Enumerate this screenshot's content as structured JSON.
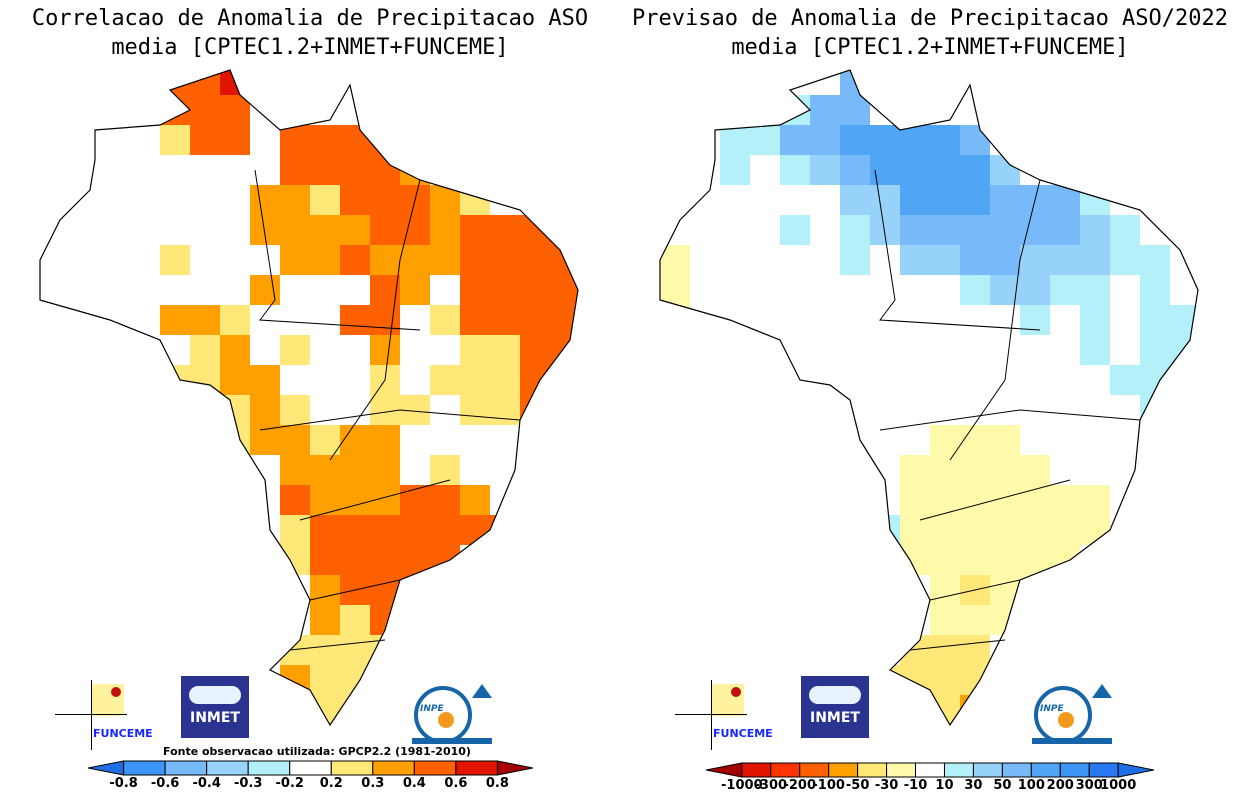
{
  "left": {
    "title_line1": "Correlacao de Anomalia de Precipitacao ASO",
    "title_line2": "media [CPTEC1.2+INMET+FUNCEME]",
    "source_note": "Fonte observacao utilizada: GPCP2.2 (1981-2010)",
    "colorbar": {
      "labels": [
        "-0.8",
        "-0.6",
        "-0.4",
        "-0.3",
        "-0.2",
        "0.2",
        "0.3",
        "0.4",
        "0.6",
        "0.8"
      ],
      "colors": [
        "#1e6ee6",
        "#3c96f5",
        "#78b9fa",
        "#96d2fa",
        "#b4f0fa",
        "#ffffff",
        "#ffe878",
        "#ffa000",
        "#ff6000",
        "#e11400",
        "#a50000"
      ]
    },
    "map_legend": {
      ".": "#ffffff",
      "y": "#ffe878",
      "o": "#ffa000",
      "r": "#ff6000",
      "R": "#e11400"
    },
    "grid": [
      "....rrR...........",
      "....rrr...........",
      "....yrr.rrrr......",
      "........rrrro.....",
      ".......ooyrrroy...",
      ".......oooorrorrrr",
      "....y...oorooorrrr",
      ".......o...ro.rrrr",
      "....ooy...rr.yrrrr",
      ".....yo.y..o..yyrr",
      "....yyoo...y.yyyrr",
      "......yoy..yy.yyr.",
      "......yooyoo......",
      "........oooo.y....",
      "........rooorro...",
      "........yrrrrrrr..",
      "........yrrrrr....",
      ".........orrr.....",
      ".........oyry.....",
      "........yyyy......",
      "........oyy.......",
      "........yyy.......",
      "..........y......."
    ]
  },
  "right": {
    "title_line1": "Previsao de Anomalia de Precipitacao ASO/2022",
    "title_line2": "media [CPTEC1.2+INMET+FUNCEME]",
    "colorbar": {
      "labels": [
        "-1000",
        "-300",
        "-200",
        "-100",
        "-50",
        "-30",
        "-10",
        "10",
        "30",
        "50",
        "100",
        "200",
        "300",
        "1000"
      ],
      "colors": [
        "#a50000",
        "#e11400",
        "#ff3200",
        "#ff6000",
        "#ffa000",
        "#ffe878",
        "#fffaaa",
        "#ffffff",
        "#b4f0fa",
        "#96d2fa",
        "#78b9fa",
        "#50a5f5",
        "#3c96f5",
        "#2878f0",
        "#1e6ee6"
      ]
    },
    "map_legend": {
      ".": "#ffffff",
      "l": "#b4f0fa",
      "c": "#96d2fa",
      "b": "#78b9fa",
      "B": "#50a5f5",
      "y": "#fffaaa",
      "Y": "#ffe878",
      "o": "#ffa000"
    },
    "grid": [
      "......b...........",
      "....lbb...........",
      "..llbbBBBBb.......",
      "..l.lcbBBBBc......",
      "......ccBBBbbbl...",
      "....l.lcbbbbbbcl..",
      "y.....l.ccbbcccll.",
      "y.........lccll.l.",
      "y...........l.l.ll",
      "..............l.ll",
      "...............ll.",
      "................ll",
      ".........yyy......",
      "........yyyyy.....",
      "........yyyyyyy...",
      ".......lyyyyyyy...",
      "........yyyyyy....",
      ".........yYyy.....",
      ".........yyy......",
      "........YYY.......",
      ".......YYYY.......",
      "........YYo.......",
      "..........o......."
    ]
  },
  "logos": {
    "funceme": "FUNCEME",
    "inmet": "INMET",
    "inpe": "INPE"
  }
}
